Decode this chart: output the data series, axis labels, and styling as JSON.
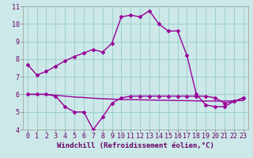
{
  "xlabel": "Windchill (Refroidissement éolien,°C)",
  "hours": [
    0,
    1,
    2,
    3,
    4,
    5,
    6,
    7,
    8,
    9,
    10,
    11,
    12,
    13,
    14,
    15,
    16,
    17,
    18,
    19,
    20,
    21,
    22,
    23
  ],
  "line1": [
    7.7,
    7.1,
    7.3,
    7.6,
    7.9,
    8.15,
    8.35,
    8.55,
    8.4,
    8.9,
    10.4,
    10.5,
    10.4,
    10.75,
    10.0,
    9.6,
    9.6,
    8.2,
    6.0,
    5.4,
    5.3,
    5.3,
    5.6,
    5.8
  ],
  "line2": [
    6.0,
    6.0,
    6.0,
    5.9,
    5.3,
    5.0,
    5.0,
    4.0,
    4.7,
    5.5,
    5.8,
    5.9,
    5.9,
    5.9,
    5.9,
    5.9,
    5.9,
    5.9,
    5.9,
    5.9,
    5.8,
    5.5,
    5.6,
    5.8
  ],
  "line3": [
    6.0,
    6.0,
    6.0,
    5.95,
    5.9,
    5.85,
    5.82,
    5.78,
    5.75,
    5.73,
    5.71,
    5.7,
    5.69,
    5.68,
    5.67,
    5.66,
    5.65,
    5.64,
    5.63,
    5.62,
    5.62,
    5.62,
    5.63,
    5.65
  ],
  "line_color": "#990099",
  "bg_color": "#cce8e8",
  "grid_color": "#99cccc",
  "ylim": [
    4,
    11
  ],
  "xlim": [
    0,
    23
  ],
  "yticks": [
    4,
    5,
    6,
    7,
    8,
    9,
    10,
    11
  ],
  "xticks": [
    0,
    1,
    2,
    3,
    4,
    5,
    6,
    7,
    8,
    9,
    10,
    11,
    12,
    13,
    14,
    15,
    16,
    17,
    18,
    19,
    20,
    21,
    22,
    23
  ],
  "xlabel_fontsize": 6.5,
  "tick_fontsize": 6,
  "linewidth": 1.0,
  "marker": "D",
  "markersize": 2.0
}
